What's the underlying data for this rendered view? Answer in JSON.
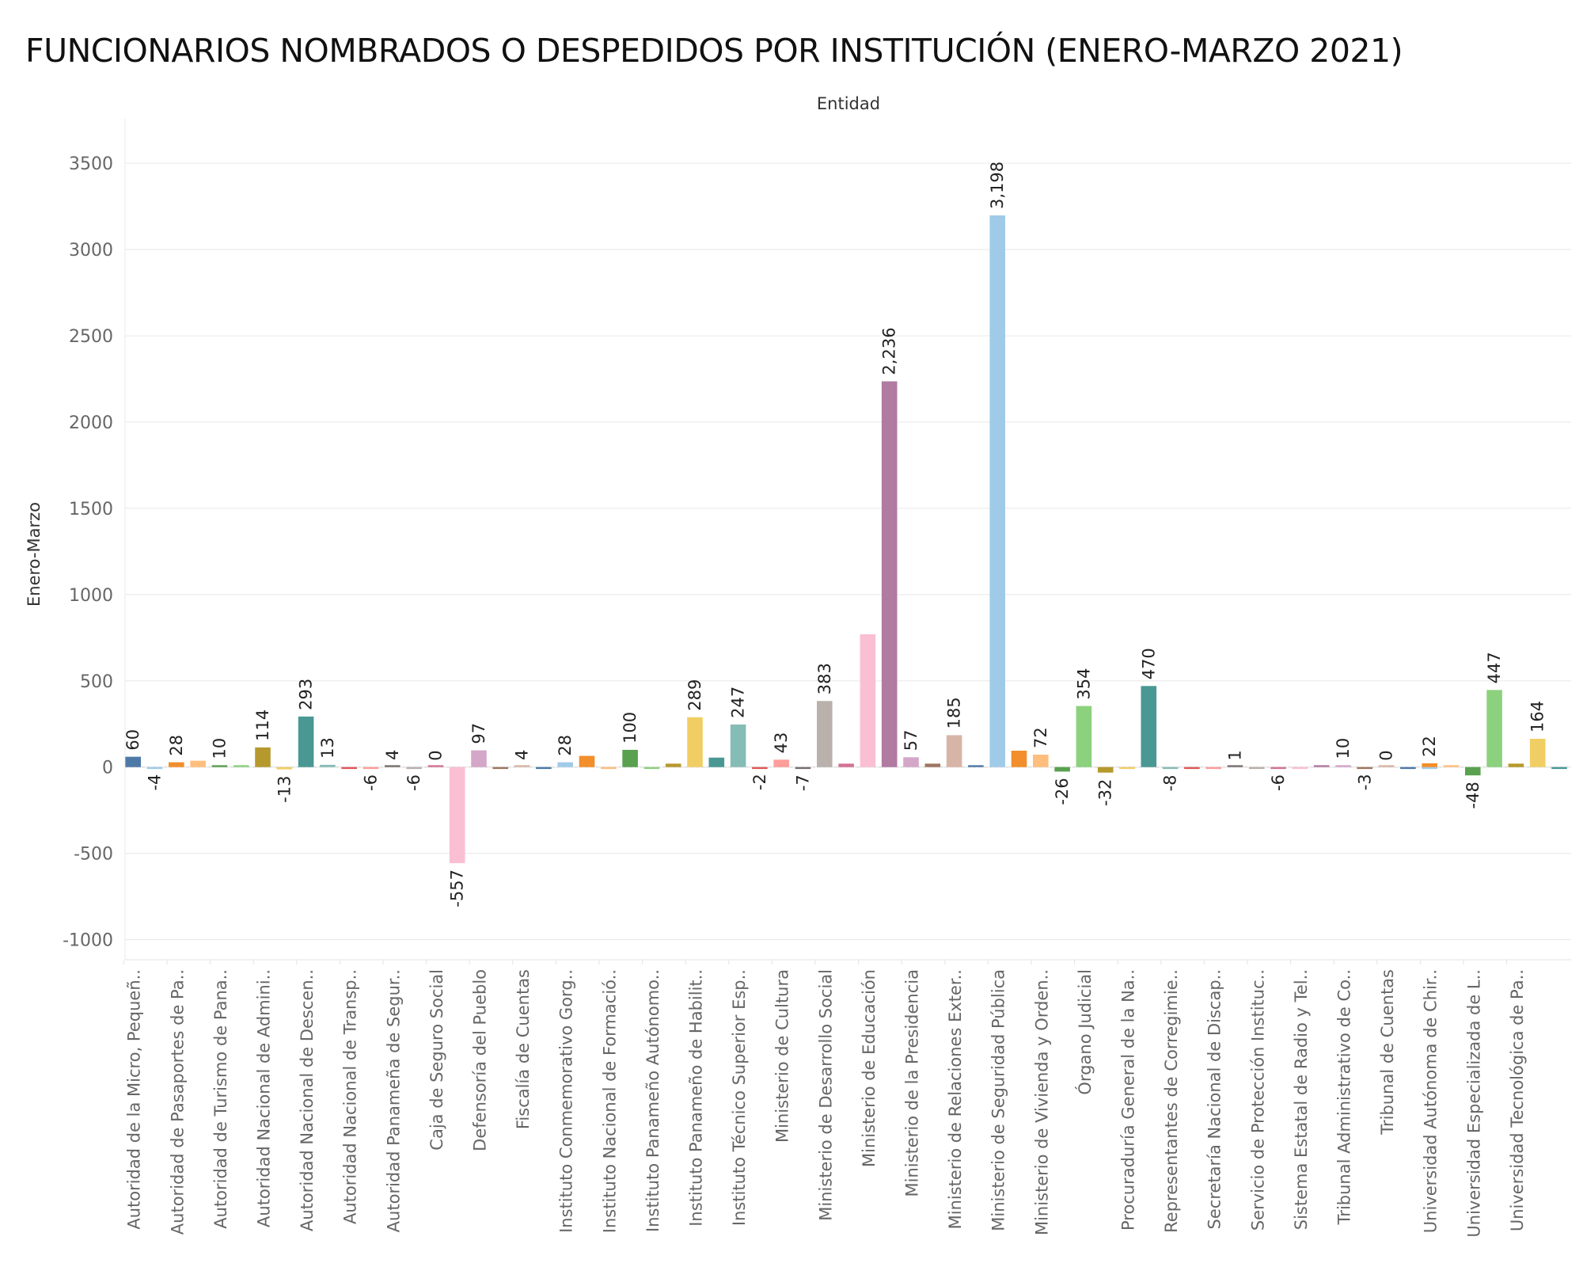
{
  "page": {
    "title": "FUNCIONARIOS NOMBRADOS O DESPEDIDOS POR INSTITUCIÓN (ENERO-MARZO 2021)"
  },
  "chart_data": {
    "type": "bar",
    "title": "FUNCIONARIOS NOMBRADOS O DESPEDIDOS POR INSTITUCIÓN (ENERO-MARZO 2021)",
    "xlabel": "Entidad",
    "ylabel": "Enero-Marzo",
    "ylim": [
      -1150,
      3750
    ],
    "yticks": [
      3500,
      3000,
      2500,
      2000,
      1500,
      1000,
      500,
      0,
      -500,
      -1000
    ],
    "ytick_labels": [
      "3500",
      "3000",
      "2500",
      "2000",
      "1500",
      "1000",
      "500",
      "0",
      "-500",
      "-1000"
    ],
    "grid": true,
    "categories": [
      "Autoridad de la Micro, Pequeñ..",
      "Autoridad de Pasaportes de Pa..",
      "Autoridad de Turismo de Pana..",
      "Autoridad Nacional de Admini..",
      "Autoridad Nacional de Descen..",
      "Autoridad Nacional de Transp..",
      "Autoridad Panameña de Segur..",
      "Caja de Seguro Social",
      "Defensoría del Pueblo",
      "Fiscalía de Cuentas",
      "Instituto Conmemorativo Gorg..",
      "Instituto Nacional de Formació..",
      "Instituto Panameño Autónomo..",
      "Instituto Panameño de Habilit..",
      "Instituto Técnico Superior Esp..",
      "Ministerio de Cultura",
      "Ministerio de Desarrollo Social",
      "Ministerio de Educación",
      "Ministerio de la Presidencia",
      "Ministerio de Relaciones Exter..",
      "Ministerio de Seguridad Pública",
      "Ministerio de Vivienda y Orden..",
      "Órgano Judicial",
      "Procuraduría General de la Na..",
      "Representantes de Corregimie..",
      "Secretaría Nacional de Discap..",
      "Servicio de Protección Instituc..",
      "Sistema Estatal de Radio y Tel..",
      "Tribunal Administrativo de Co..",
      "Tribunal de Cuentas",
      "Universidad Autónoma de Chir..",
      "Universidad Especializada de L..",
      "Universidad Tecnológica de Pa.."
    ],
    "bars": [
      {
        "value": 60,
        "color": "#4e79a7",
        "label": "60",
        "cat": 0,
        "pos": 0
      },
      {
        "value": -4,
        "color": "#a0cbe8",
        "label": "-4",
        "cat": 0,
        "pos": 1
      },
      {
        "value": 28,
        "color": "#f28e2b",
        "label": "28",
        "cat": 1,
        "pos": 0
      },
      {
        "value": 37,
        "color": "#ffbe7d",
        "label": "",
        "cat": 1,
        "pos": 1
      },
      {
        "value": 10,
        "color": "#59a14f",
        "label": "10",
        "cat": 2,
        "pos": 0
      },
      {
        "value": 8,
        "color": "#8cd17d",
        "label": "",
        "cat": 2,
        "pos": 1
      },
      {
        "value": 114,
        "color": "#b6992d",
        "label": "114",
        "cat": 3,
        "pos": 0
      },
      {
        "value": -13,
        "color": "#f1ce63",
        "label": "-13",
        "cat": 3,
        "pos": 1
      },
      {
        "value": 293,
        "color": "#499894",
        "label": "293",
        "cat": 4,
        "pos": 0
      },
      {
        "value": 13,
        "color": "#86bcb6",
        "label": "13",
        "cat": 4,
        "pos": 1
      },
      {
        "value": -6,
        "color": "#e15759",
        "label": "",
        "cat": 5,
        "pos": 0
      },
      {
        "value": -6,
        "color": "#ff9d9a",
        "label": "-6",
        "cat": 5,
        "pos": 1
      },
      {
        "value": 4,
        "color": "#79706e",
        "label": "4",
        "cat": 6,
        "pos": 0
      },
      {
        "value": -6,
        "color": "#bab0ac",
        "label": "-6",
        "cat": 6,
        "pos": 1
      },
      {
        "value": 0,
        "color": "#d37295",
        "label": "0",
        "cat": 7,
        "pos": 0
      },
      {
        "value": -557,
        "color": "#fabfd2",
        "label": "-557",
        "cat": 7,
        "pos": 1
      },
      {
        "value": 97,
        "color": "#d4a6c8",
        "label": "97",
        "cat": 8,
        "pos": 0
      },
      {
        "value": -4,
        "color": "#9d7660",
        "label": "",
        "cat": 8,
        "pos": 1
      },
      {
        "value": 4,
        "color": "#d7b5a6",
        "label": "4",
        "cat": 9,
        "pos": 0
      },
      {
        "value": -4,
        "color": "#4e79a7",
        "label": "",
        "cat": 9,
        "pos": 1
      },
      {
        "value": 28,
        "color": "#a0cbe8",
        "label": "28",
        "cat": 10,
        "pos": 0
      },
      {
        "value": 65,
        "color": "#f28e2b",
        "label": "",
        "cat": 10,
        "pos": 1
      },
      {
        "value": -5,
        "color": "#ffbe7d",
        "label": "",
        "cat": 11,
        "pos": 0
      },
      {
        "value": 100,
        "color": "#59a14f",
        "label": "100",
        "cat": 11,
        "pos": 1
      },
      {
        "value": -5,
        "color": "#8cd17d",
        "label": "",
        "cat": 12,
        "pos": 0
      },
      {
        "value": 20,
        "color": "#b6992d",
        "label": "",
        "cat": 12,
        "pos": 1
      },
      {
        "value": 289,
        "color": "#f1ce63",
        "label": "289",
        "cat": 13,
        "pos": 0
      },
      {
        "value": 55,
        "color": "#499894",
        "label": "",
        "cat": 13,
        "pos": 1
      },
      {
        "value": 247,
        "color": "#86bcb6",
        "label": "247",
        "cat": 14,
        "pos": 0
      },
      {
        "value": -2,
        "color": "#e15759",
        "label": "-2",
        "cat": 14,
        "pos": 1
      },
      {
        "value": 43,
        "color": "#ff9d9a",
        "label": "43",
        "cat": 15,
        "pos": 0
      },
      {
        "value": -7,
        "color": "#79706e",
        "label": "-7",
        "cat": 15,
        "pos": 1
      },
      {
        "value": 383,
        "color": "#bab0ac",
        "label": "383",
        "cat": 16,
        "pos": 0
      },
      {
        "value": 20,
        "color": "#d37295",
        "label": "",
        "cat": 16,
        "pos": 1
      },
      {
        "value": 770,
        "color": "#fabfd2",
        "label": "",
        "cat": 17,
        "pos": 0
      },
      {
        "value": 2236,
        "color": "#b07aa1",
        "label": "2,236",
        "cat": 17,
        "pos": 1
      },
      {
        "value": 57,
        "color": "#d4a6c8",
        "label": "57",
        "cat": 18,
        "pos": 0
      },
      {
        "value": 20,
        "color": "#9d7660",
        "label": "",
        "cat": 18,
        "pos": 1
      },
      {
        "value": 185,
        "color": "#d7b5a6",
        "label": "185",
        "cat": 19,
        "pos": 0
      },
      {
        "value": 8,
        "color": "#4e79a7",
        "label": "",
        "cat": 19,
        "pos": 1
      },
      {
        "value": 3198,
        "color": "#a0cbe8",
        "label": "3,198",
        "cat": 20,
        "pos": 0
      },
      {
        "value": 95,
        "color": "#f28e2b",
        "label": "",
        "cat": 20,
        "pos": 1
      },
      {
        "value": 72,
        "color": "#ffbe7d",
        "label": "72",
        "cat": 21,
        "pos": 0
      },
      {
        "value": -26,
        "color": "#59a14f",
        "label": "-26",
        "cat": 21,
        "pos": 1
      },
      {
        "value": 354,
        "color": "#8cd17d",
        "label": "354",
        "cat": 22,
        "pos": 0
      },
      {
        "value": -32,
        "color": "#b6992d",
        "label": "-32",
        "cat": 22,
        "pos": 1
      },
      {
        "value": -5,
        "color": "#f1ce63",
        "label": "",
        "cat": 23,
        "pos": 0
      },
      {
        "value": 470,
        "color": "#499894",
        "label": "470",
        "cat": 23,
        "pos": 1
      },
      {
        "value": -8,
        "color": "#86bcb6",
        "label": "-8",
        "cat": 24,
        "pos": 0
      },
      {
        "value": -5,
        "color": "#e15759",
        "label": "",
        "cat": 24,
        "pos": 1
      },
      {
        "value": -5,
        "color": "#ff9d9a",
        "label": "",
        "cat": 25,
        "pos": 0
      },
      {
        "value": 1,
        "color": "#79706e",
        "label": "1",
        "cat": 25,
        "pos": 1
      },
      {
        "value": -4,
        "color": "#bab0ac",
        "label": "",
        "cat": 26,
        "pos": 0
      },
      {
        "value": -6,
        "color": "#d37295",
        "label": "-6",
        "cat": 26,
        "pos": 1
      },
      {
        "value": -4,
        "color": "#fabfd2",
        "label": "",
        "cat": 27,
        "pos": 0
      },
      {
        "value": 5,
        "color": "#b07aa1",
        "label": "",
        "cat": 27,
        "pos": 1
      },
      {
        "value": 10,
        "color": "#d4a6c8",
        "label": "10",
        "cat": 28,
        "pos": 0
      },
      {
        "value": -3,
        "color": "#9d7660",
        "label": "-3",
        "cat": 28,
        "pos": 1
      },
      {
        "value": 0,
        "color": "#d7b5a6",
        "label": "0",
        "cat": 29,
        "pos": 0
      },
      {
        "value": -5,
        "color": "#4e79a7",
        "label": "",
        "cat": 29,
        "pos": 1
      },
      {
        "value": -4,
        "color": "#a0cbe8",
        "label": "",
        "cat": 29,
        "pos": 2
      },
      {
        "value": 22,
        "color": "#f28e2b",
        "label": "22",
        "cat": 30,
        "pos": 0
      },
      {
        "value": 8,
        "color": "#ffbe7d",
        "label": "",
        "cat": 30,
        "pos": 1
      },
      {
        "value": -48,
        "color": "#59a14f",
        "label": "-48",
        "cat": 31,
        "pos": 0
      },
      {
        "value": 447,
        "color": "#8cd17d",
        "label": "447",
        "cat": 31,
        "pos": 1
      },
      {
        "value": 20,
        "color": "#b6992d",
        "label": "",
        "cat": 32,
        "pos": 0
      },
      {
        "value": 164,
        "color": "#f1ce63",
        "label": "164",
        "cat": 32,
        "pos": 1
      },
      {
        "value": -4,
        "color": "#499894",
        "label": "",
        "cat": 32,
        "pos": 2
      }
    ]
  }
}
